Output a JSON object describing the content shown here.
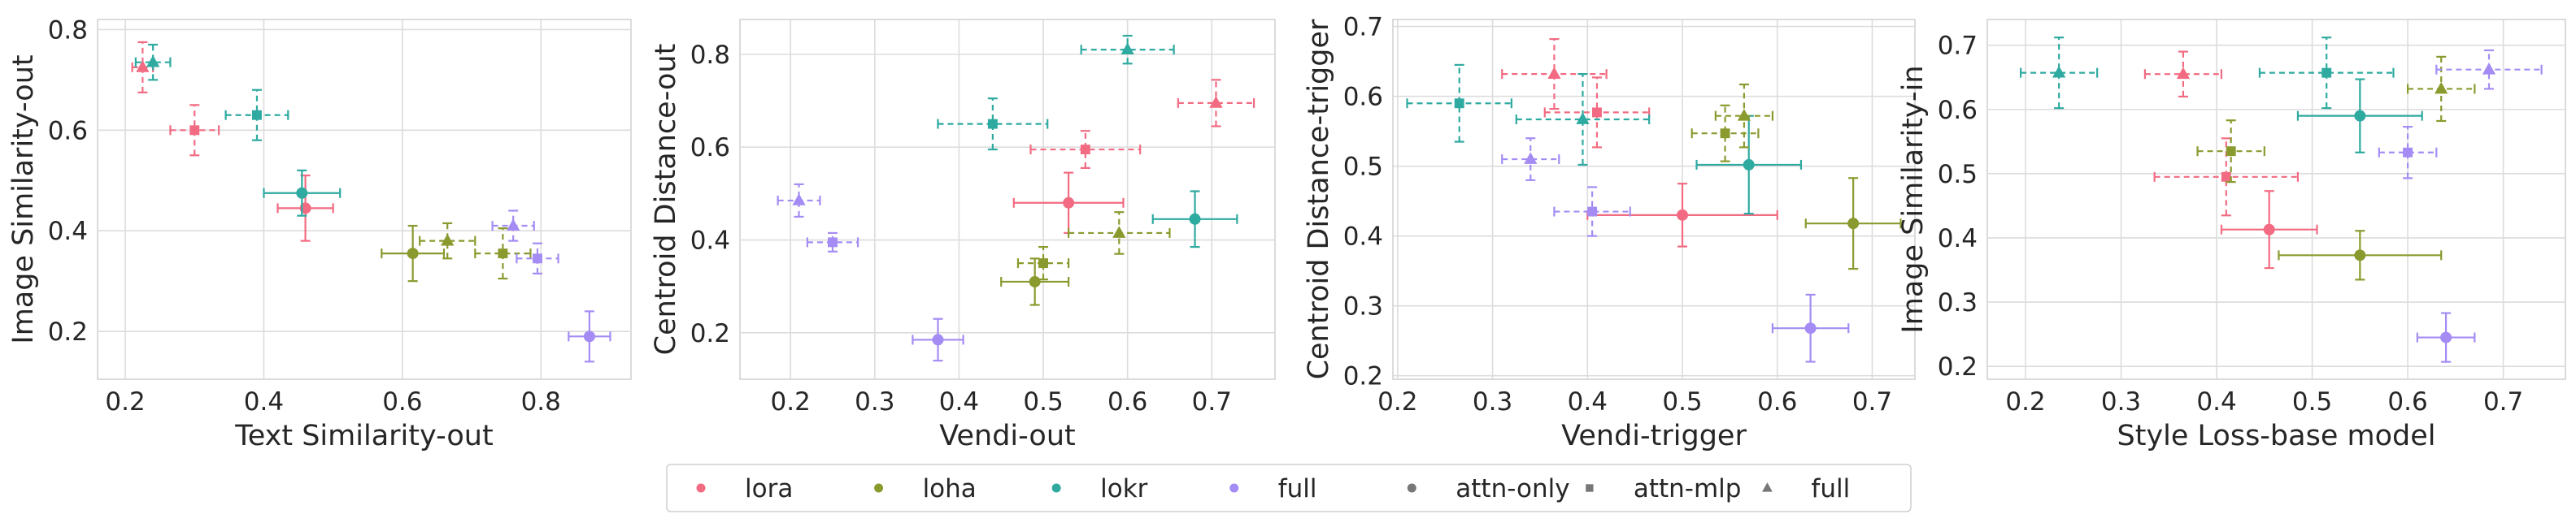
{
  "colors": {
    "lora": "#f26b82",
    "loha": "#8b9a2e",
    "lokr": "#2eaaa0",
    "full": "#a48cf4",
    "style_marker": "#777777"
  },
  "legend": {
    "items": [
      {
        "label": "lora",
        "kind": "color",
        "color_key": "lora",
        "marker": "circle"
      },
      {
        "label": "loha",
        "kind": "color",
        "color_key": "loha",
        "marker": "circle"
      },
      {
        "label": "lokr",
        "kind": "color",
        "color_key": "lokr",
        "marker": "circle"
      },
      {
        "label": "full",
        "kind": "color",
        "color_key": "full",
        "marker": "circle"
      },
      {
        "label": "attn-only",
        "kind": "marker",
        "color_key": "style_marker",
        "marker": "circle"
      },
      {
        "label": "attn-mlp",
        "kind": "marker",
        "color_key": "style_marker",
        "marker": "square"
      },
      {
        "label": "full",
        "kind": "marker",
        "color_key": "style_marker",
        "marker": "triangle"
      }
    ]
  },
  "chart_data": [
    {
      "type": "scatter",
      "xlabel": "Text Similarity-out",
      "ylabel": "Image Similarity-out",
      "xlim": [
        0.16,
        0.93
      ],
      "ylim": [
        0.105,
        0.82
      ],
      "xticks": [
        0.2,
        0.4,
        0.6,
        0.8
      ],
      "yticks": [
        0.2,
        0.4,
        0.6,
        0.8
      ],
      "xticklabels": [
        "0.2",
        "0.4",
        "0.6",
        "0.8"
      ],
      "yticklabels": [
        "0.2",
        "0.4",
        "0.6",
        "0.8"
      ],
      "grid": true,
      "points": [
        {
          "algo": "lora",
          "config": "full",
          "x": 0.225,
          "xerr": 0.015,
          "y": 0.725,
          "yerr": 0.05
        },
        {
          "algo": "lora",
          "config": "attn-mlp",
          "x": 0.3,
          "xerr": 0.035,
          "y": 0.6,
          "yerr": 0.05
        },
        {
          "algo": "lora",
          "config": "attn-only",
          "x": 0.46,
          "xerr": 0.04,
          "y": 0.445,
          "yerr": 0.065
        },
        {
          "algo": "lokr",
          "config": "full",
          "x": 0.24,
          "xerr": 0.025,
          "y": 0.735,
          "yerr": 0.035
        },
        {
          "algo": "lokr",
          "config": "attn-mlp",
          "x": 0.39,
          "xerr": 0.045,
          "y": 0.63,
          "yerr": 0.05
        },
        {
          "algo": "lokr",
          "config": "attn-only",
          "x": 0.455,
          "xerr": 0.055,
          "y": 0.475,
          "yerr": 0.045
        },
        {
          "algo": "loha",
          "config": "attn-only",
          "x": 0.615,
          "xerr": 0.045,
          "y": 0.355,
          "yerr": 0.055
        },
        {
          "algo": "loha",
          "config": "full",
          "x": 0.665,
          "xerr": 0.04,
          "y": 0.38,
          "yerr": 0.035
        },
        {
          "algo": "loha",
          "config": "attn-mlp",
          "x": 0.745,
          "xerr": 0.04,
          "y": 0.355,
          "yerr": 0.05
        },
        {
          "algo": "full",
          "config": "full",
          "x": 0.76,
          "xerr": 0.03,
          "y": 0.41,
          "yerr": 0.03
        },
        {
          "algo": "full",
          "config": "attn-mlp",
          "x": 0.795,
          "xerr": 0.03,
          "y": 0.345,
          "yerr": 0.03
        },
        {
          "algo": "full",
          "config": "attn-only",
          "x": 0.87,
          "xerr": 0.03,
          "y": 0.19,
          "yerr": 0.05
        }
      ]
    },
    {
      "type": "scatter",
      "xlabel": "Vendi-out",
      "ylabel": "Centroid Distance-out",
      "xlim": [
        0.14,
        0.775
      ],
      "ylim": [
        0.1,
        0.875
      ],
      "xticks": [
        0.2,
        0.3,
        0.4,
        0.5,
        0.6,
        0.7
      ],
      "yticks": [
        0.2,
        0.4,
        0.6,
        0.8
      ],
      "xticklabels": [
        "0.2",
        "0.3",
        "0.4",
        "0.5",
        "0.6",
        "0.7"
      ],
      "yticklabels": [
        "0.2",
        "0.4",
        "0.6",
        "0.8"
      ],
      "grid": true,
      "points": [
        {
          "algo": "lora",
          "config": "full",
          "x": 0.705,
          "xerr": 0.045,
          "y": 0.695,
          "yerr": 0.05
        },
        {
          "algo": "lora",
          "config": "attn-mlp",
          "x": 0.55,
          "xerr": 0.065,
          "y": 0.595,
          "yerr": 0.04
        },
        {
          "algo": "lora",
          "config": "attn-only",
          "x": 0.53,
          "xerr": 0.065,
          "y": 0.48,
          "yerr": 0.065
        },
        {
          "algo": "lokr",
          "config": "full",
          "x": 0.6,
          "xerr": 0.055,
          "y": 0.81,
          "yerr": 0.03
        },
        {
          "algo": "lokr",
          "config": "attn-mlp",
          "x": 0.44,
          "xerr": 0.065,
          "y": 0.65,
          "yerr": 0.055
        },
        {
          "algo": "lokr",
          "config": "attn-only",
          "x": 0.68,
          "xerr": 0.05,
          "y": 0.445,
          "yerr": 0.06
        },
        {
          "algo": "loha",
          "config": "full",
          "x": 0.59,
          "xerr": 0.06,
          "y": 0.415,
          "yerr": 0.045
        },
        {
          "algo": "loha",
          "config": "attn-mlp",
          "x": 0.5,
          "xerr": 0.03,
          "y": 0.35,
          "yerr": 0.035
        },
        {
          "algo": "loha",
          "config": "attn-only",
          "x": 0.49,
          "xerr": 0.04,
          "y": 0.31,
          "yerr": 0.05
        },
        {
          "algo": "full",
          "config": "full",
          "x": 0.21,
          "xerr": 0.025,
          "y": 0.485,
          "yerr": 0.035
        },
        {
          "algo": "full",
          "config": "attn-mlp",
          "x": 0.25,
          "xerr": 0.03,
          "y": 0.395,
          "yerr": 0.02
        },
        {
          "algo": "full",
          "config": "attn-only",
          "x": 0.375,
          "xerr": 0.03,
          "y": 0.185,
          "yerr": 0.045
        }
      ]
    },
    {
      "type": "scatter",
      "xlabel": "Vendi-trigger",
      "ylabel": "Centroid Distance-trigger",
      "xlim": [
        0.195,
        0.745
      ],
      "ylim": [
        0.195,
        0.71
      ],
      "xticks": [
        0.2,
        0.3,
        0.4,
        0.5,
        0.6,
        0.7
      ],
      "yticks": [
        0.2,
        0.3,
        0.4,
        0.5,
        0.6,
        0.7
      ],
      "xticklabels": [
        "0.2",
        "0.3",
        "0.4",
        "0.5",
        "0.6",
        "0.7"
      ],
      "yticklabels": [
        "0.2",
        "0.3",
        "0.4",
        "0.5",
        "0.6",
        "0.7"
      ],
      "grid": true,
      "points": [
        {
          "algo": "lora",
          "config": "full",
          "x": 0.365,
          "xerr": 0.055,
          "y": 0.632,
          "yerr": 0.05
        },
        {
          "algo": "lora",
          "config": "attn-mlp",
          "x": 0.41,
          "xerr": 0.055,
          "y": 0.577,
          "yerr": 0.05
        },
        {
          "algo": "lora",
          "config": "attn-only",
          "x": 0.5,
          "xerr": 0.1,
          "y": 0.43,
          "yerr": 0.045
        },
        {
          "algo": "lokr",
          "config": "attn-mlp",
          "x": 0.265,
          "xerr": 0.055,
          "y": 0.59,
          "yerr": 0.055
        },
        {
          "algo": "lokr",
          "config": "full",
          "x": 0.395,
          "xerr": 0.07,
          "y": 0.567,
          "yerr": 0.065
        },
        {
          "algo": "lokr",
          "config": "attn-only",
          "x": 0.57,
          "xerr": 0.055,
          "y": 0.502,
          "yerr": 0.07
        },
        {
          "algo": "loha",
          "config": "full",
          "x": 0.565,
          "xerr": 0.03,
          "y": 0.572,
          "yerr": 0.045
        },
        {
          "algo": "loha",
          "config": "attn-mlp",
          "x": 0.545,
          "xerr": 0.035,
          "y": 0.547,
          "yerr": 0.04
        },
        {
          "algo": "loha",
          "config": "attn-only",
          "x": 0.68,
          "xerr": 0.05,
          "y": 0.418,
          "yerr": 0.065
        },
        {
          "algo": "full",
          "config": "full",
          "x": 0.34,
          "xerr": 0.03,
          "y": 0.51,
          "yerr": 0.03
        },
        {
          "algo": "full",
          "config": "attn-mlp",
          "x": 0.405,
          "xerr": 0.04,
          "y": 0.435,
          "yerr": 0.035
        },
        {
          "algo": "full",
          "config": "attn-only",
          "x": 0.635,
          "xerr": 0.04,
          "y": 0.268,
          "yerr": 0.048
        }
      ]
    },
    {
      "type": "scatter",
      "xlabel": "Style Loss-base model",
      "ylabel": "Image Similarity-in",
      "xlim": [
        0.16,
        0.765
      ],
      "ylim": [
        0.18,
        0.74
      ],
      "xticks": [
        0.2,
        0.3,
        0.4,
        0.5,
        0.6,
        0.7
      ],
      "yticks": [
        0.2,
        0.3,
        0.4,
        0.5,
        0.6,
        0.7
      ],
      "xticklabels": [
        "0.2",
        "0.3",
        "0.4",
        "0.5",
        "0.6",
        "0.7"
      ],
      "yticklabels": [
        "0.2",
        "0.3",
        "0.4",
        "0.5",
        "0.6",
        "0.7"
      ],
      "grid": true,
      "points": [
        {
          "algo": "lora",
          "config": "full",
          "x": 0.365,
          "xerr": 0.04,
          "y": 0.655,
          "yerr": 0.035
        },
        {
          "algo": "lora",
          "config": "attn-mlp",
          "x": 0.41,
          "xerr": 0.075,
          "y": 0.495,
          "yerr": 0.06
        },
        {
          "algo": "lora",
          "config": "attn-only",
          "x": 0.455,
          "xerr": 0.05,
          "y": 0.413,
          "yerr": 0.06
        },
        {
          "algo": "lokr",
          "config": "full",
          "x": 0.235,
          "xerr": 0.04,
          "y": 0.657,
          "yerr": 0.055
        },
        {
          "algo": "lokr",
          "config": "attn-mlp",
          "x": 0.515,
          "xerr": 0.07,
          "y": 0.657,
          "yerr": 0.055
        },
        {
          "algo": "lokr",
          "config": "attn-only",
          "x": 0.55,
          "xerr": 0.065,
          "y": 0.59,
          "yerr": 0.057
        },
        {
          "algo": "loha",
          "config": "full",
          "x": 0.635,
          "xerr": 0.035,
          "y": 0.632,
          "yerr": 0.05
        },
        {
          "algo": "loha",
          "config": "attn-mlp",
          "x": 0.415,
          "xerr": 0.035,
          "y": 0.535,
          "yerr": 0.048
        },
        {
          "algo": "loha",
          "config": "attn-only",
          "x": 0.55,
          "xerr": 0.085,
          "y": 0.373,
          "yerr": 0.038
        },
        {
          "algo": "full",
          "config": "full",
          "x": 0.685,
          "xerr": 0.055,
          "y": 0.662,
          "yerr": 0.03
        },
        {
          "algo": "full",
          "config": "attn-mlp",
          "x": 0.6,
          "xerr": 0.03,
          "y": 0.533,
          "yerr": 0.04
        },
        {
          "algo": "full",
          "config": "attn-only",
          "x": 0.64,
          "xerr": 0.03,
          "y": 0.245,
          "yerr": 0.038
        }
      ]
    }
  ]
}
